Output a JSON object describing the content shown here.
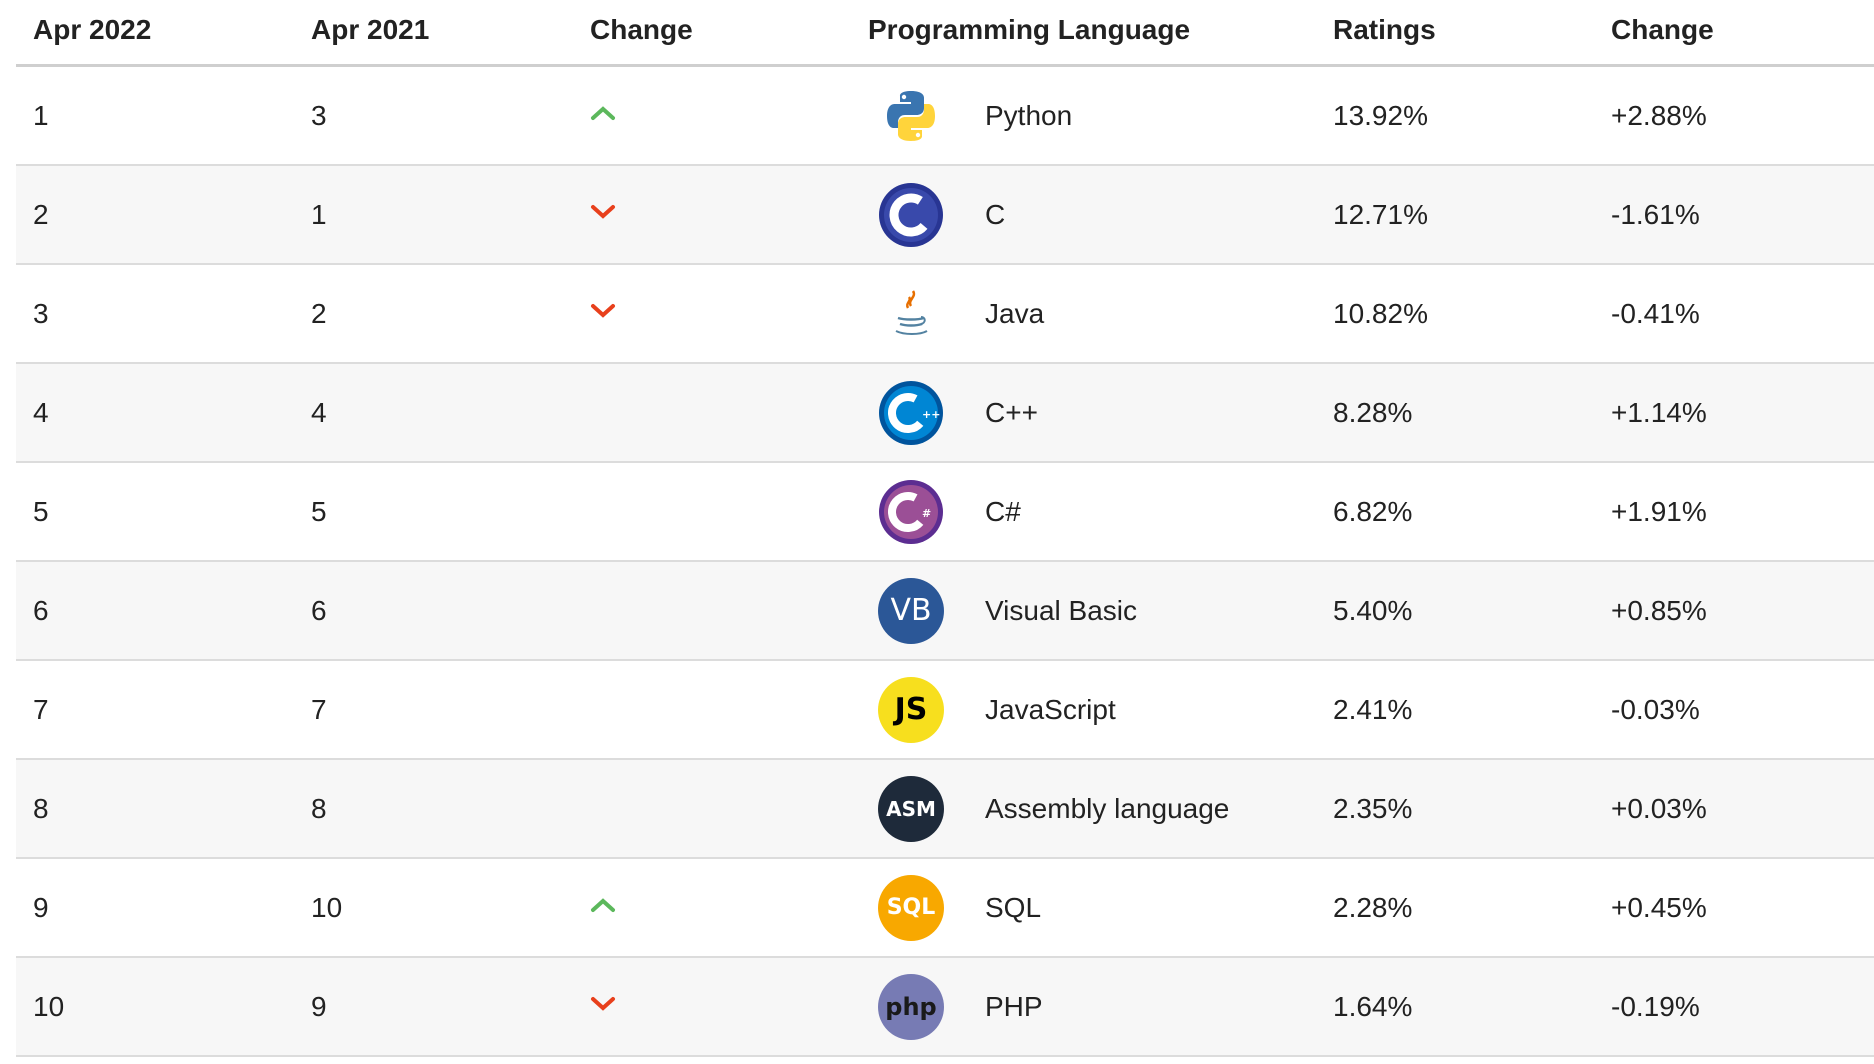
{
  "header": {
    "col1": "Apr 2022",
    "col2": "Apr 2021",
    "col3": "Change",
    "col4": "Programming Language",
    "col5": "Ratings",
    "col6": "Change"
  },
  "colors": {
    "up_arrow": "#5cb85c",
    "down_arrow": "#e8401c"
  },
  "rows": [
    {
      "rank_now": "1",
      "rank_prev": "3",
      "trend": "up",
      "language": "Python",
      "logo": "python-icon",
      "rating": "13.92%",
      "change": "+2.88%"
    },
    {
      "rank_now": "2",
      "rank_prev": "1",
      "trend": "down",
      "language": "C",
      "logo": "c-icon",
      "rating": "12.71%",
      "change": "-1.61%"
    },
    {
      "rank_now": "3",
      "rank_prev": "2",
      "trend": "down",
      "language": "Java",
      "logo": "java-icon",
      "rating": "10.82%",
      "change": "-0.41%"
    },
    {
      "rank_now": "4",
      "rank_prev": "4",
      "trend": "none",
      "language": "C++",
      "logo": "cpp-icon",
      "rating": "8.28%",
      "change": "+1.14%"
    },
    {
      "rank_now": "5",
      "rank_prev": "5",
      "trend": "none",
      "language": "C#",
      "logo": "csharp-icon",
      "rating": "6.82%",
      "change": "+1.91%"
    },
    {
      "rank_now": "6",
      "rank_prev": "6",
      "trend": "none",
      "language": "Visual Basic",
      "logo": "vb-icon",
      "logo_text": "VB",
      "rating": "5.40%",
      "change": "+0.85%"
    },
    {
      "rank_now": "7",
      "rank_prev": "7",
      "trend": "none",
      "language": "JavaScript",
      "logo": "javascript-icon",
      "logo_text": "JS",
      "rating": "2.41%",
      "change": "-0.03%"
    },
    {
      "rank_now": "8",
      "rank_prev": "8",
      "trend": "none",
      "language": "Assembly language",
      "logo": "assembly-icon",
      "logo_text": "ASM",
      "rating": "2.35%",
      "change": "+0.03%"
    },
    {
      "rank_now": "9",
      "rank_prev": "10",
      "trend": "up",
      "language": "SQL",
      "logo": "sql-icon",
      "logo_text": "SQL",
      "rating": "2.28%",
      "change": "+0.45%"
    },
    {
      "rank_now": "10",
      "rank_prev": "9",
      "trend": "down",
      "language": "PHP",
      "logo": "php-icon",
      "logo_text": "php",
      "rating": "1.64%",
      "change": "-0.19%"
    }
  ]
}
